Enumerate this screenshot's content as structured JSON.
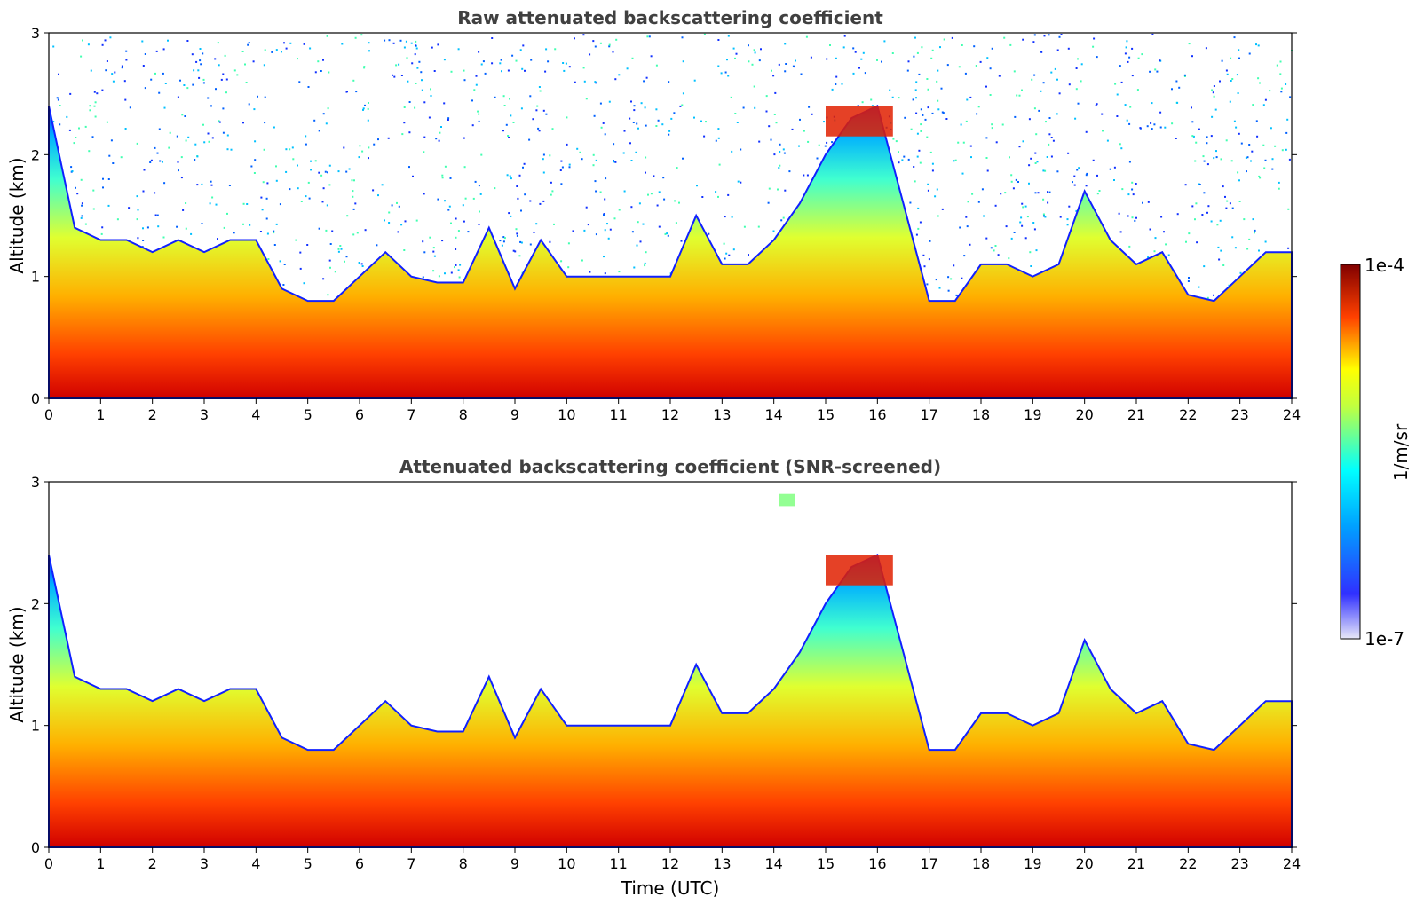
{
  "chart_data": [
    {
      "type": "heatmap",
      "title": "Raw attenuated backscattering coefficient",
      "xlabel": "",
      "ylabel": "Altitude (km)",
      "xlim": [
        0,
        24
      ],
      "ylim": [
        0,
        3
      ],
      "x_ticks": [
        "0",
        "1",
        "2",
        "3",
        "4",
        "5",
        "6",
        "7",
        "8",
        "9",
        "10",
        "11",
        "12",
        "13",
        "14",
        "15",
        "16",
        "17",
        "18",
        "19",
        "20",
        "21",
        "22",
        "23",
        "24"
      ],
      "y_ticks": [
        "0",
        "1",
        "2",
        "3"
      ],
      "screening": "none",
      "boundary_layer_top_km": [
        {
          "t": 0.0,
          "h": 2.4
        },
        {
          "t": 0.5,
          "h": 1.4
        },
        {
          "t": 1.0,
          "h": 1.3
        },
        {
          "t": 1.5,
          "h": 1.3
        },
        {
          "t": 2.0,
          "h": 1.2
        },
        {
          "t": 2.5,
          "h": 1.3
        },
        {
          "t": 3.0,
          "h": 1.2
        },
        {
          "t": 3.5,
          "h": 1.3
        },
        {
          "t": 4.0,
          "h": 1.3
        },
        {
          "t": 4.5,
          "h": 0.9
        },
        {
          "t": 5.0,
          "h": 0.8
        },
        {
          "t": 5.5,
          "h": 0.8
        },
        {
          "t": 6.0,
          "h": 1.0
        },
        {
          "t": 6.5,
          "h": 1.2
        },
        {
          "t": 7.0,
          "h": 1.0
        },
        {
          "t": 7.5,
          "h": 0.95
        },
        {
          "t": 8.0,
          "h": 0.95
        },
        {
          "t": 8.5,
          "h": 1.4
        },
        {
          "t": 9.0,
          "h": 0.9
        },
        {
          "t": 9.5,
          "h": 1.3
        },
        {
          "t": 10.0,
          "h": 1.0
        },
        {
          "t": 10.5,
          "h": 1.0
        },
        {
          "t": 11.0,
          "h": 1.0
        },
        {
          "t": 11.5,
          "h": 1.0
        },
        {
          "t": 12.0,
          "h": 1.0
        },
        {
          "t": 12.5,
          "h": 1.5
        },
        {
          "t": 13.0,
          "h": 1.1
        },
        {
          "t": 13.5,
          "h": 1.1
        },
        {
          "t": 14.0,
          "h": 1.3
        },
        {
          "t": 14.5,
          "h": 1.6
        },
        {
          "t": 15.0,
          "h": 2.0
        },
        {
          "t": 15.5,
          "h": 2.3
        },
        {
          "t": 16.0,
          "h": 2.4
        },
        {
          "t": 16.5,
          "h": 1.6
        },
        {
          "t": 17.0,
          "h": 0.8
        },
        {
          "t": 17.5,
          "h": 0.8
        },
        {
          "t": 18.0,
          "h": 1.1
        },
        {
          "t": 18.5,
          "h": 1.1
        },
        {
          "t": 19.0,
          "h": 1.0
        },
        {
          "t": 19.5,
          "h": 1.1
        },
        {
          "t": 20.0,
          "h": 1.7
        },
        {
          "t": 20.5,
          "h": 1.3
        },
        {
          "t": 21.0,
          "h": 1.1
        },
        {
          "t": 21.5,
          "h": 1.2
        },
        {
          "t": 22.0,
          "h": 0.85
        },
        {
          "t": 22.5,
          "h": 0.8
        },
        {
          "t": 23.0,
          "h": 1.0
        },
        {
          "t": 23.5,
          "h": 1.2
        },
        {
          "t": 24.0,
          "h": 1.2
        }
      ],
      "elevated_layers": [
        {
          "t_start": 15.0,
          "t_end": 16.3,
          "h_bottom_km": 2.15,
          "h_top_km": 2.4,
          "intensity": "high"
        }
      ]
    },
    {
      "type": "heatmap",
      "title": "Attenuated backscattering coefficient (SNR-screened)",
      "xlabel": "Time (UTC)",
      "ylabel": "Altitude (km)",
      "xlim": [
        0,
        24
      ],
      "ylim": [
        0,
        3
      ],
      "x_ticks": [
        "0",
        "1",
        "2",
        "3",
        "4",
        "5",
        "6",
        "7",
        "8",
        "9",
        "10",
        "11",
        "12",
        "13",
        "14",
        "15",
        "16",
        "17",
        "18",
        "19",
        "20",
        "21",
        "22",
        "23",
        "24"
      ],
      "y_ticks": [
        "0",
        "1",
        "2",
        "3"
      ],
      "screening": "SNR",
      "boundary_layer_top_km": [
        {
          "t": 0.0,
          "h": 2.4
        },
        {
          "t": 0.5,
          "h": 1.4
        },
        {
          "t": 1.0,
          "h": 1.3
        },
        {
          "t": 1.5,
          "h": 1.3
        },
        {
          "t": 2.0,
          "h": 1.2
        },
        {
          "t": 2.5,
          "h": 1.3
        },
        {
          "t": 3.0,
          "h": 1.2
        },
        {
          "t": 3.5,
          "h": 1.3
        },
        {
          "t": 4.0,
          "h": 1.3
        },
        {
          "t": 4.5,
          "h": 0.9
        },
        {
          "t": 5.0,
          "h": 0.8
        },
        {
          "t": 5.5,
          "h": 0.8
        },
        {
          "t": 6.0,
          "h": 1.0
        },
        {
          "t": 6.5,
          "h": 1.2
        },
        {
          "t": 7.0,
          "h": 1.0
        },
        {
          "t": 7.5,
          "h": 0.95
        },
        {
          "t": 8.0,
          "h": 0.95
        },
        {
          "t": 8.5,
          "h": 1.4
        },
        {
          "t": 9.0,
          "h": 0.9
        },
        {
          "t": 9.5,
          "h": 1.3
        },
        {
          "t": 10.0,
          "h": 1.0
        },
        {
          "t": 10.5,
          "h": 1.0
        },
        {
          "t": 11.0,
          "h": 1.0
        },
        {
          "t": 11.5,
          "h": 1.0
        },
        {
          "t": 12.0,
          "h": 1.0
        },
        {
          "t": 12.5,
          "h": 1.5
        },
        {
          "t": 13.0,
          "h": 1.1
        },
        {
          "t": 13.5,
          "h": 1.1
        },
        {
          "t": 14.0,
          "h": 1.3
        },
        {
          "t": 14.5,
          "h": 1.6
        },
        {
          "t": 15.0,
          "h": 2.0
        },
        {
          "t": 15.5,
          "h": 2.3
        },
        {
          "t": 16.0,
          "h": 2.4
        },
        {
          "t": 16.5,
          "h": 1.6
        },
        {
          "t": 17.0,
          "h": 0.8
        },
        {
          "t": 17.5,
          "h": 0.8
        },
        {
          "t": 18.0,
          "h": 1.1
        },
        {
          "t": 18.5,
          "h": 1.1
        },
        {
          "t": 19.0,
          "h": 1.0
        },
        {
          "t": 19.5,
          "h": 1.1
        },
        {
          "t": 20.0,
          "h": 1.7
        },
        {
          "t": 20.5,
          "h": 1.3
        },
        {
          "t": 21.0,
          "h": 1.1
        },
        {
          "t": 21.5,
          "h": 1.2
        },
        {
          "t": 22.0,
          "h": 0.85
        },
        {
          "t": 22.5,
          "h": 0.8
        },
        {
          "t": 23.0,
          "h": 1.0
        },
        {
          "t": 23.5,
          "h": 1.2
        },
        {
          "t": 24.0,
          "h": 1.2
        }
      ],
      "elevated_layers": [
        {
          "t_start": 15.0,
          "t_end": 16.3,
          "h_bottom_km": 2.15,
          "h_top_km": 2.4,
          "intensity": "high"
        },
        {
          "t_start": 14.1,
          "t_end": 14.4,
          "h_bottom_km": 2.8,
          "h_top_km": 2.9,
          "intensity": "low"
        }
      ]
    }
  ],
  "colorbar": {
    "label": "1/m/sr",
    "max_label": "1e-4",
    "min_label": "1e-7",
    "colormap": "jet",
    "colors": [
      "#e8e8f8",
      "#0000ff",
      "#00ffff",
      "#ffff00",
      "#ff0000",
      "#800000"
    ]
  }
}
